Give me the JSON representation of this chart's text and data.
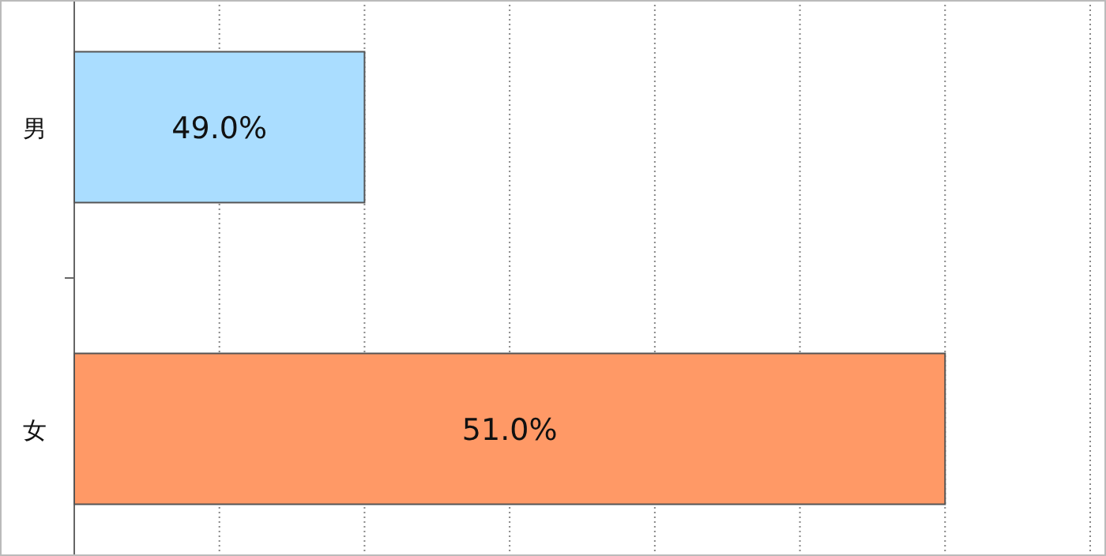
{
  "chart_data": {
    "type": "bar",
    "orientation": "horizontal",
    "categories": [
      "男",
      "女"
    ],
    "values": [
      49.0,
      51.0
    ],
    "colors": [
      "#aaddff",
      "#ff9966"
    ],
    "value_labels": [
      "49.0%",
      "51.0%"
    ],
    "xlim": [
      48,
      51.5
    ],
    "xticks": [
      {
        "value": 48,
        "label": null
      },
      {
        "value": 48.5,
        "label": null
      },
      {
        "value": 49,
        "label": null
      },
      {
        "value": 49.5,
        "label": null
      },
      {
        "value": 50,
        "label": null
      },
      {
        "value": 50.5,
        "label": null
      },
      {
        "value": 51,
        "label": null
      },
      {
        "value": 51.5,
        "label": null
      }
    ],
    "grid": "x",
    "tick_labels": "y"
  }
}
